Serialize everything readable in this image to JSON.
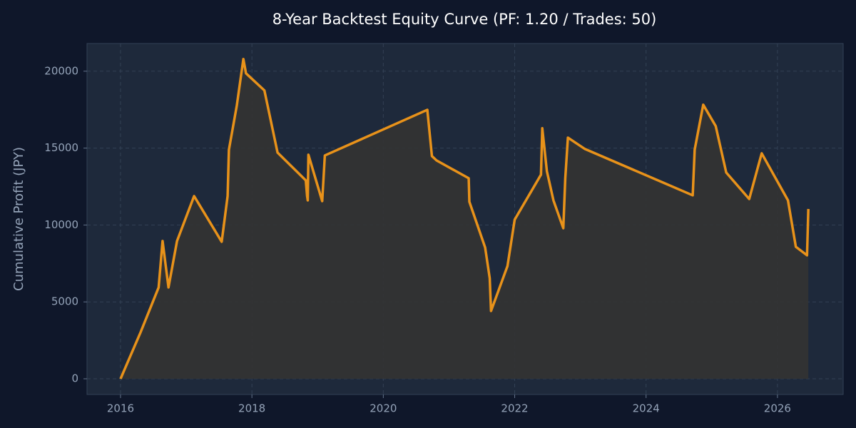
{
  "chart_data": {
    "type": "line",
    "title": "8-Year Backtest Equity Curve (PF: 1.20 / Trades: 50)",
    "y_label": "Cumulative Profit (JPY)",
    "x": [
      2016.0,
      2016.3,
      2016.58,
      2016.64,
      2016.73,
      2016.86,
      2017.12,
      2017.54,
      2017.63,
      2017.65,
      2017.77,
      2017.87,
      2017.91,
      2018.19,
      2018.39,
      2018.82,
      2018.84,
      2018.85,
      2018.86,
      2019.07,
      2019.11,
      2020.67,
      2020.74,
      2020.81,
      2021.3,
      2021.31,
      2021.55,
      2021.62,
      2021.64,
      2021.89,
      2022.0,
      2022.4,
      2022.42,
      2022.49,
      2022.59,
      2022.74,
      2022.77,
      2022.81,
      2023.07,
      2024.71,
      2024.74,
      2024.87,
      2025.06,
      2025.22,
      2025.57,
      2025.76,
      2026.16,
      2026.28,
      2026.45,
      2026.47
    ],
    "series": [
      {
        "name": "Equity",
        "color": "#e8921a",
        "values": [
          0,
          2970,
          5940,
          8960,
          5940,
          8960,
          11880,
          8910,
          11880,
          14900,
          17770,
          20790,
          19860,
          18750,
          14710,
          12900,
          11880,
          11600,
          14570,
          11550,
          14520,
          17490,
          14480,
          14200,
          13040,
          11510,
          8540,
          6540,
          4410,
          7330,
          10350,
          13270,
          16290,
          13500,
          11600,
          9790,
          13040,
          15680,
          14940,
          11930,
          14900,
          17820,
          16430,
          13410,
          11690,
          14660,
          11600,
          8580,
          8030,
          11040
        ]
      }
    ],
    "xlim": [
      2015.49,
      2027.0
    ],
    "xticks": [
      2016,
      2018,
      2020,
      2022,
      2024,
      2026
    ],
    "ylim": [
      -1020,
      21800
    ],
    "yticks": [
      0,
      5000,
      10000,
      15000,
      20000
    ],
    "grid": true,
    "fill_color": "#333333"
  }
}
